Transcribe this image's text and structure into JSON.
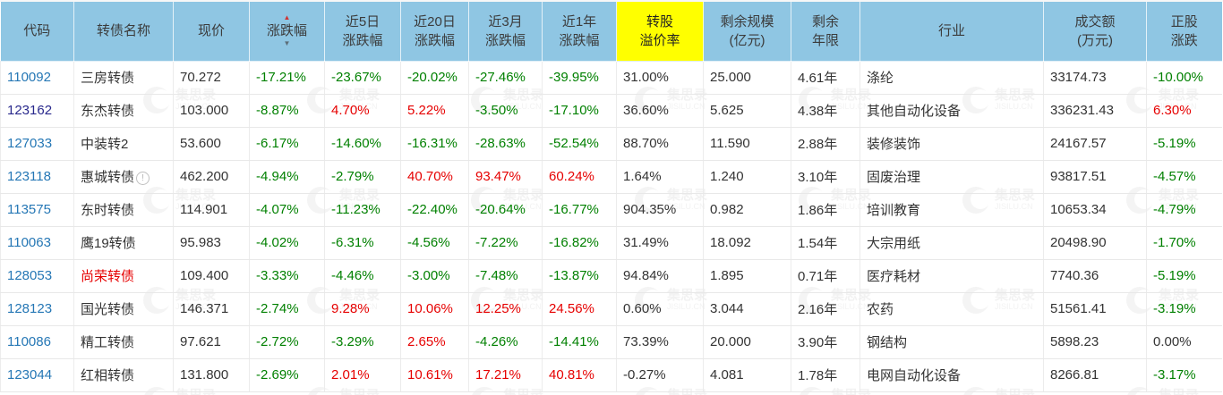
{
  "table": {
    "columns": [
      {
        "key": "code",
        "lines": [
          "代码"
        ],
        "sign_colored": false
      },
      {
        "key": "name",
        "lines": [
          "转债名称"
        ],
        "sign_colored": false
      },
      {
        "key": "price",
        "lines": [
          "现价"
        ],
        "sign_colored": false
      },
      {
        "key": "chg",
        "lines": [
          "涨跌幅"
        ],
        "sign_colored": true,
        "sort": true
      },
      {
        "key": "chg5",
        "lines": [
          "近5日",
          "涨跌幅"
        ],
        "sign_colored": true
      },
      {
        "key": "chg20",
        "lines": [
          "近20日",
          "涨跌幅"
        ],
        "sign_colored": true
      },
      {
        "key": "chg3m",
        "lines": [
          "近3月",
          "涨跌幅"
        ],
        "sign_colored": true
      },
      {
        "key": "chg1y",
        "lines": [
          "近1年",
          "涨跌幅"
        ],
        "sign_colored": true
      },
      {
        "key": "premium",
        "lines": [
          "转股",
          "溢价率"
        ],
        "sign_colored": false,
        "highlight": true
      },
      {
        "key": "scale",
        "lines": [
          "剩余规模",
          "(亿元)"
        ],
        "sign_colored": false
      },
      {
        "key": "years",
        "lines": [
          "剩余",
          "年限"
        ],
        "sign_colored": false
      },
      {
        "key": "industry",
        "lines": [
          "行业"
        ],
        "sign_colored": false
      },
      {
        "key": "turnover",
        "lines": [
          "成交额",
          "(万元)"
        ],
        "sign_colored": false
      },
      {
        "key": "stockchg",
        "lines": [
          "正股",
          "涨跌"
        ],
        "sign_colored": true
      }
    ],
    "rows": [
      {
        "code": "110092",
        "name": "三房转债",
        "price": "70.272",
        "chg": "-17.21%",
        "chg5": "-23.67%",
        "chg20": "-20.02%",
        "chg3m": "-27.46%",
        "chg1y": "-39.95%",
        "premium": "31.00%",
        "scale": "25.000",
        "years": "4.61年",
        "industry": "涤纶",
        "turnover": "33174.73",
        "stockchg": "-10.00%"
      },
      {
        "code": "123162",
        "name": "东杰转债",
        "price": "103.000",
        "chg": "-8.87%",
        "chg5": "4.70%",
        "chg20": "5.22%",
        "chg3m": "-3.50%",
        "chg1y": "-17.10%",
        "premium": "36.60%",
        "scale": "5.625",
        "years": "4.38年",
        "industry": "其他自动化设备",
        "turnover": "336231.43",
        "stockchg": "6.30%",
        "code_visited": true
      },
      {
        "code": "127033",
        "name": "中装转2",
        "price": "53.600",
        "chg": "-6.17%",
        "chg5": "-14.60%",
        "chg20": "-16.31%",
        "chg3m": "-28.63%",
        "chg1y": "-52.54%",
        "premium": "88.70%",
        "scale": "11.590",
        "years": "2.88年",
        "industry": "装修装饰",
        "turnover": "24167.57",
        "stockchg": "-5.19%"
      },
      {
        "code": "123118",
        "name": "惠城转债",
        "price": "462.200",
        "chg": "-4.94%",
        "chg5": "-2.79%",
        "chg20": "40.70%",
        "chg3m": "93.47%",
        "chg1y": "60.24%",
        "premium": "1.64%",
        "scale": "1.240",
        "years": "3.10年",
        "industry": "固废治理",
        "turnover": "93817.51",
        "stockchg": "-4.57%",
        "info_icon": true
      },
      {
        "code": "113575",
        "name": "东时转债",
        "price": "114.901",
        "chg": "-4.07%",
        "chg5": "-11.23%",
        "chg20": "-22.40%",
        "chg3m": "-20.64%",
        "chg1y": "-16.77%",
        "premium": "904.35%",
        "scale": "0.982",
        "years": "1.86年",
        "industry": "培训教育",
        "turnover": "10653.34",
        "stockchg": "-4.79%"
      },
      {
        "code": "110063",
        "name": "鹰19转债",
        "price": "95.983",
        "chg": "-4.02%",
        "chg5": "-6.31%",
        "chg20": "-4.56%",
        "chg3m": "-7.22%",
        "chg1y": "-16.82%",
        "premium": "31.49%",
        "scale": "18.092",
        "years": "1.54年",
        "industry": "大宗用纸",
        "turnover": "20498.90",
        "stockchg": "-1.70%"
      },
      {
        "code": "128053",
        "name": "尚荣转债",
        "price": "109.400",
        "chg": "-3.33%",
        "chg5": "-4.46%",
        "chg20": "-3.00%",
        "chg3m": "-7.48%",
        "chg1y": "-13.87%",
        "premium": "94.84%",
        "scale": "1.895",
        "years": "0.71年",
        "industry": "医疗耗材",
        "turnover": "7740.36",
        "stockchg": "-5.19%",
        "name_red": true
      },
      {
        "code": "128123",
        "name": "国光转债",
        "price": "146.371",
        "chg": "-2.74%",
        "chg5": "9.28%",
        "chg20": "10.06%",
        "chg3m": "12.25%",
        "chg1y": "24.56%",
        "premium": "0.60%",
        "scale": "3.044",
        "years": "2.16年",
        "industry": "农药",
        "turnover": "51561.41",
        "stockchg": "-3.19%"
      },
      {
        "code": "110086",
        "name": "精工转债",
        "price": "97.621",
        "chg": "-2.72%",
        "chg5": "-3.29%",
        "chg20": "2.65%",
        "chg3m": "-4.26%",
        "chg1y": "-14.41%",
        "premium": "73.39%",
        "scale": "20.000",
        "years": "3.90年",
        "industry": "钢结构",
        "turnover": "5898.23",
        "stockchg": "0.00%"
      },
      {
        "code": "123044",
        "name": "红相转债",
        "price": "131.800",
        "chg": "-2.69%",
        "chg5": "2.01%",
        "chg20": "10.61%",
        "chg3m": "17.21%",
        "chg1y": "40.81%",
        "premium": "-0.27%",
        "scale": "4.081",
        "years": "1.78年",
        "industry": "电网自动化设备",
        "turnover": "8266.81",
        "stockchg": "-3.17%"
      }
    ]
  },
  "icons": {
    "sort_asc": "▲",
    "sort_desc": "▼",
    "info": "!"
  },
  "colors": {
    "header_bg": "#8FC6E3",
    "highlight_bg": "#FFFF00",
    "up_red": "#E60000",
    "down_green": "#008000",
    "link_blue": "#2577B5",
    "visited_navy": "#28288C"
  },
  "watermark": {
    "cn": "集思录",
    "en": "JISILU.CN"
  }
}
